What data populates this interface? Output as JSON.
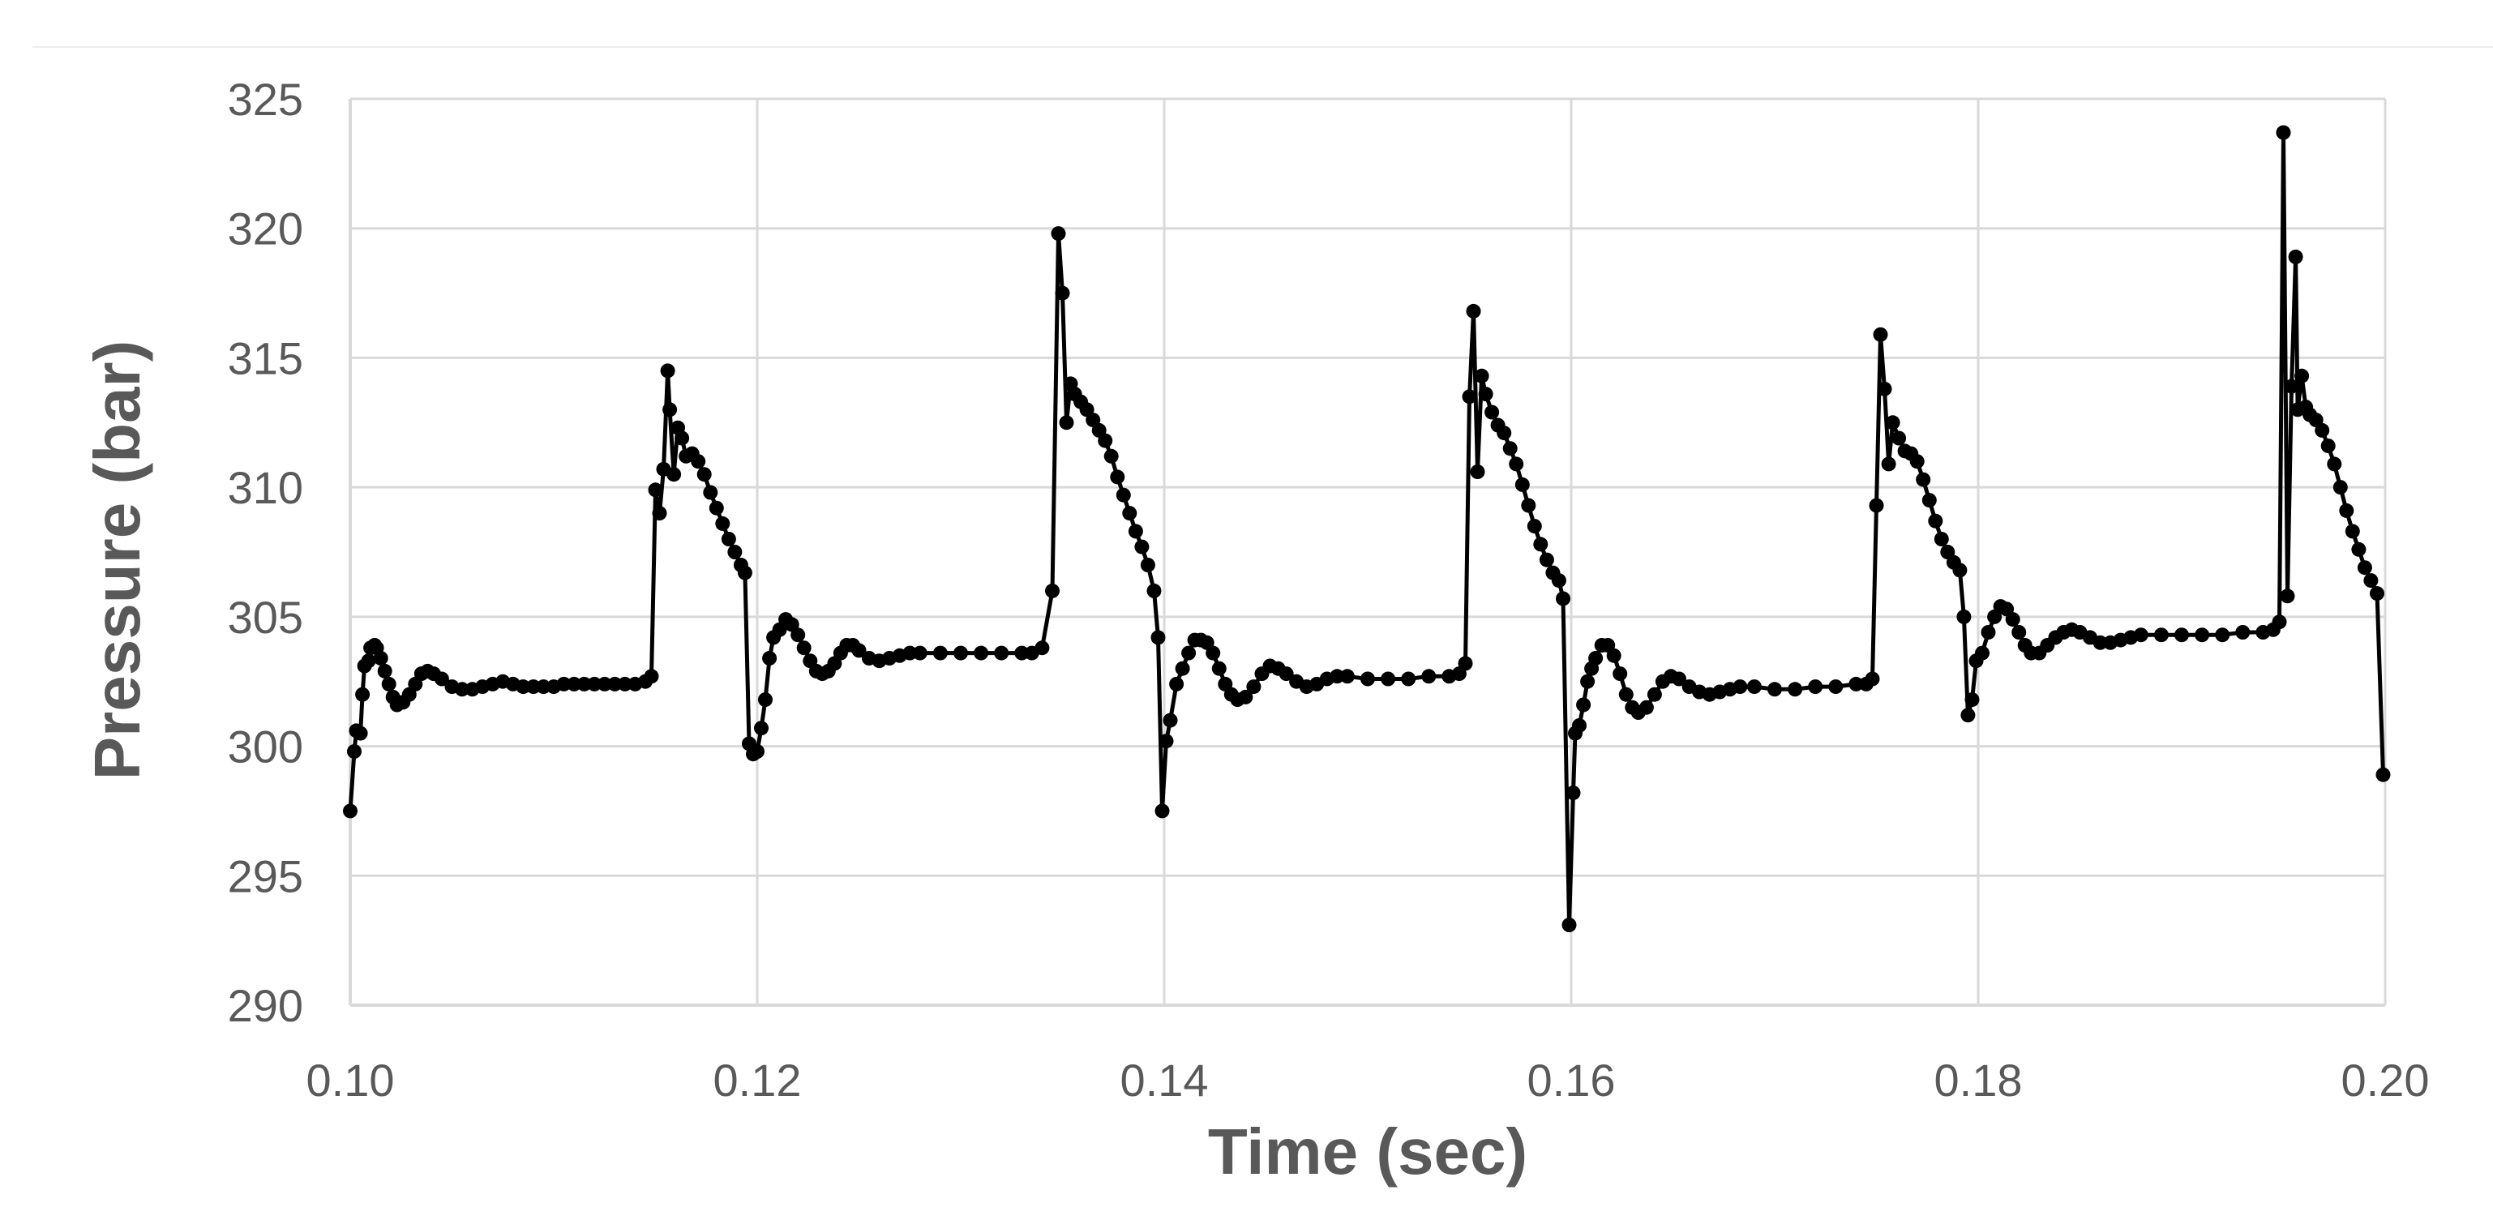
{
  "chart_data": {
    "type": "line",
    "title": "",
    "xlabel": "Time (sec)",
    "ylabel": "Pressure (bar)",
    "xlim": [
      0.1,
      0.2
    ],
    "ylim": [
      290,
      325
    ],
    "x_ticks": [
      "0.10",
      "0.12",
      "0.14",
      "0.16",
      "0.18",
      "0.20"
    ],
    "y_ticks": [
      "290",
      "295",
      "300",
      "305",
      "310",
      "315",
      "320",
      "325"
    ],
    "grid": true,
    "legend": "none",
    "colors": {
      "line": "#000000",
      "grid": "#d9d9d9",
      "text": "#595959"
    },
    "series": [
      {
        "marker": "circle",
        "points": [
          [
            0.1,
            297.5
          ],
          [
            0.1002,
            299.8
          ],
          [
            0.1003,
            300.6
          ],
          [
            0.1005,
            300.5
          ],
          [
            0.1006,
            302.0
          ],
          [
            0.1007,
            303.1
          ],
          [
            0.1009,
            303.3
          ],
          [
            0.101,
            303.8
          ],
          [
            0.1012,
            303.9
          ],
          [
            0.1013,
            303.8
          ],
          [
            0.1015,
            303.4
          ],
          [
            0.1017,
            302.9
          ],
          [
            0.1019,
            302.4
          ],
          [
            0.1021,
            301.9
          ],
          [
            0.1023,
            301.6
          ],
          [
            0.1026,
            301.7
          ],
          [
            0.1029,
            302.0
          ],
          [
            0.1032,
            302.4
          ],
          [
            0.1035,
            302.8
          ],
          [
            0.1038,
            302.9
          ],
          [
            0.1041,
            302.8
          ],
          [
            0.1045,
            302.6
          ],
          [
            0.105,
            302.3
          ],
          [
            0.1055,
            302.2
          ],
          [
            0.106,
            302.2
          ],
          [
            0.1065,
            302.3
          ],
          [
            0.107,
            302.4
          ],
          [
            0.1075,
            302.5
          ],
          [
            0.108,
            302.4
          ],
          [
            0.1085,
            302.3
          ],
          [
            0.109,
            302.3
          ],
          [
            0.1095,
            302.3
          ],
          [
            0.11,
            302.3
          ],
          [
            0.1105,
            302.4
          ],
          [
            0.111,
            302.4
          ],
          [
            0.1115,
            302.4
          ],
          [
            0.112,
            302.4
          ],
          [
            0.1125,
            302.4
          ],
          [
            0.113,
            302.4
          ],
          [
            0.1135,
            302.4
          ],
          [
            0.114,
            302.4
          ],
          [
            0.1145,
            302.5
          ],
          [
            0.1148,
            302.7
          ],
          [
            0.115,
            309.9
          ],
          [
            0.1152,
            309.0
          ],
          [
            0.1154,
            310.7
          ],
          [
            0.1156,
            314.5
          ],
          [
            0.1157,
            313.0
          ],
          [
            0.1159,
            310.5
          ],
          [
            0.1161,
            312.3
          ],
          [
            0.1163,
            311.9
          ],
          [
            0.1165,
            311.2
          ],
          [
            0.1168,
            311.3
          ],
          [
            0.1171,
            311.0
          ],
          [
            0.1174,
            310.5
          ],
          [
            0.1177,
            309.8
          ],
          [
            0.118,
            309.2
          ],
          [
            0.1183,
            308.6
          ],
          [
            0.1186,
            308.0
          ],
          [
            0.1189,
            307.5
          ],
          [
            0.1192,
            307.0
          ],
          [
            0.1194,
            306.7
          ],
          [
            0.1196,
            300.1
          ],
          [
            0.1198,
            299.7
          ],
          [
            0.12,
            299.8
          ],
          [
            0.1202,
            300.7
          ],
          [
            0.1204,
            301.8
          ],
          [
            0.1206,
            303.4
          ],
          [
            0.1208,
            304.2
          ],
          [
            0.1211,
            304.5
          ],
          [
            0.1214,
            304.9
          ],
          [
            0.1217,
            304.7
          ],
          [
            0.122,
            304.3
          ],
          [
            0.1223,
            303.8
          ],
          [
            0.1226,
            303.3
          ],
          [
            0.1229,
            302.9
          ],
          [
            0.1232,
            302.8
          ],
          [
            0.1235,
            302.9
          ],
          [
            0.1238,
            303.2
          ],
          [
            0.1241,
            303.6
          ],
          [
            0.1244,
            303.9
          ],
          [
            0.1247,
            303.9
          ],
          [
            0.125,
            303.7
          ],
          [
            0.1255,
            303.4
          ],
          [
            0.126,
            303.3
          ],
          [
            0.1265,
            303.4
          ],
          [
            0.127,
            303.5
          ],
          [
            0.1275,
            303.6
          ],
          [
            0.128,
            303.6
          ],
          [
            0.129,
            303.6
          ],
          [
            0.13,
            303.6
          ],
          [
            0.131,
            303.6
          ],
          [
            0.132,
            303.6
          ],
          [
            0.133,
            303.6
          ],
          [
            0.1335,
            303.6
          ],
          [
            0.134,
            303.8
          ],
          [
            0.1345,
            306.0
          ],
          [
            0.1348,
            319.8
          ],
          [
            0.135,
            317.5
          ],
          [
            0.1352,
            312.5
          ],
          [
            0.1354,
            314.0
          ],
          [
            0.1356,
            313.6
          ],
          [
            0.1359,
            313.3
          ],
          [
            0.1362,
            313.0
          ],
          [
            0.1365,
            312.6
          ],
          [
            0.1368,
            312.2
          ],
          [
            0.1371,
            311.8
          ],
          [
            0.1374,
            311.2
          ],
          [
            0.1377,
            310.4
          ],
          [
            0.138,
            309.7
          ],
          [
            0.1383,
            309.0
          ],
          [
            0.1386,
            308.3
          ],
          [
            0.1389,
            307.7
          ],
          [
            0.1392,
            307.0
          ],
          [
            0.1395,
            306.0
          ],
          [
            0.1397,
            304.2
          ],
          [
            0.1399,
            297.5
          ],
          [
            0.1401,
            300.2
          ],
          [
            0.1403,
            301.0
          ],
          [
            0.1406,
            302.4
          ],
          [
            0.1409,
            303.0
          ],
          [
            0.1412,
            303.6
          ],
          [
            0.1415,
            304.1
          ],
          [
            0.1418,
            304.1
          ],
          [
            0.1421,
            304.0
          ],
          [
            0.1424,
            303.6
          ],
          [
            0.1427,
            303.0
          ],
          [
            0.143,
            302.4
          ],
          [
            0.1433,
            302.0
          ],
          [
            0.1436,
            301.8
          ],
          [
            0.144,
            301.9
          ],
          [
            0.1444,
            302.3
          ],
          [
            0.1448,
            302.8
          ],
          [
            0.1452,
            303.1
          ],
          [
            0.1456,
            303.0
          ],
          [
            0.146,
            302.8
          ],
          [
            0.1465,
            302.5
          ],
          [
            0.147,
            302.3
          ],
          [
            0.1475,
            302.4
          ],
          [
            0.148,
            302.6
          ],
          [
            0.1485,
            302.7
          ],
          [
            0.149,
            302.7
          ],
          [
            0.15,
            302.6
          ],
          [
            0.151,
            302.6
          ],
          [
            0.152,
            302.6
          ],
          [
            0.153,
            302.7
          ],
          [
            0.154,
            302.7
          ],
          [
            0.1545,
            302.8
          ],
          [
            0.1548,
            303.2
          ],
          [
            0.155,
            313.5
          ],
          [
            0.1552,
            316.8
          ],
          [
            0.1554,
            310.6
          ],
          [
            0.1556,
            314.3
          ],
          [
            0.1558,
            313.6
          ],
          [
            0.1561,
            312.9
          ],
          [
            0.1564,
            312.4
          ],
          [
            0.1567,
            312.1
          ],
          [
            0.157,
            311.5
          ],
          [
            0.1573,
            310.9
          ],
          [
            0.1576,
            310.1
          ],
          [
            0.1579,
            309.3
          ],
          [
            0.1582,
            308.5
          ],
          [
            0.1585,
            307.8
          ],
          [
            0.1588,
            307.2
          ],
          [
            0.1591,
            306.7
          ],
          [
            0.1594,
            306.4
          ],
          [
            0.1596,
            305.7
          ],
          [
            0.1599,
            293.1
          ],
          [
            0.1601,
            298.2
          ],
          [
            0.1602,
            300.5
          ],
          [
            0.1604,
            300.8
          ],
          [
            0.1606,
            301.6
          ],
          [
            0.1608,
            302.5
          ],
          [
            0.161,
            303.0
          ],
          [
            0.1612,
            303.4
          ],
          [
            0.1615,
            303.9
          ],
          [
            0.1618,
            303.9
          ],
          [
            0.1621,
            303.5
          ],
          [
            0.1624,
            302.8
          ],
          [
            0.1627,
            302.0
          ],
          [
            0.163,
            301.5
          ],
          [
            0.1633,
            301.3
          ],
          [
            0.1637,
            301.5
          ],
          [
            0.1641,
            302.0
          ],
          [
            0.1645,
            302.5
          ],
          [
            0.1649,
            302.7
          ],
          [
            0.1653,
            302.6
          ],
          [
            0.1658,
            302.3
          ],
          [
            0.1663,
            302.1
          ],
          [
            0.1668,
            302.0
          ],
          [
            0.1673,
            302.1
          ],
          [
            0.1678,
            302.2
          ],
          [
            0.1683,
            302.3
          ],
          [
            0.169,
            302.3
          ],
          [
            0.17,
            302.2
          ],
          [
            0.171,
            302.2
          ],
          [
            0.172,
            302.3
          ],
          [
            0.173,
            302.3
          ],
          [
            0.174,
            302.4
          ],
          [
            0.1745,
            302.4
          ],
          [
            0.1748,
            302.6
          ],
          [
            0.175,
            309.3
          ],
          [
            0.1752,
            315.9
          ],
          [
            0.1754,
            313.8
          ],
          [
            0.1756,
            310.9
          ],
          [
            0.1758,
            312.5
          ],
          [
            0.1761,
            311.9
          ],
          [
            0.1764,
            311.4
          ],
          [
            0.1767,
            311.3
          ],
          [
            0.177,
            311.0
          ],
          [
            0.1773,
            310.3
          ],
          [
            0.1776,
            309.5
          ],
          [
            0.1779,
            308.7
          ],
          [
            0.1782,
            308.0
          ],
          [
            0.1785,
            307.5
          ],
          [
            0.1788,
            307.1
          ],
          [
            0.1791,
            306.8
          ],
          [
            0.1793,
            305.0
          ],
          [
            0.1795,
            301.2
          ],
          [
            0.1797,
            301.8
          ],
          [
            0.1799,
            303.3
          ],
          [
            0.1802,
            303.6
          ],
          [
            0.1805,
            304.4
          ],
          [
            0.1808,
            305.0
          ],
          [
            0.1811,
            305.4
          ],
          [
            0.1814,
            305.3
          ],
          [
            0.1817,
            304.9
          ],
          [
            0.182,
            304.4
          ],
          [
            0.1823,
            303.9
          ],
          [
            0.1826,
            303.6
          ],
          [
            0.183,
            303.6
          ],
          [
            0.1834,
            303.9
          ],
          [
            0.1838,
            304.2
          ],
          [
            0.1842,
            304.4
          ],
          [
            0.1846,
            304.5
          ],
          [
            0.185,
            304.4
          ],
          [
            0.1855,
            304.2
          ],
          [
            0.186,
            304.0
          ],
          [
            0.1865,
            304.0
          ],
          [
            0.187,
            304.1
          ],
          [
            0.1875,
            304.2
          ],
          [
            0.188,
            304.3
          ],
          [
            0.189,
            304.3
          ],
          [
            0.19,
            304.3
          ],
          [
            0.191,
            304.3
          ],
          [
            0.192,
            304.3
          ],
          [
            0.193,
            304.4
          ],
          [
            0.194,
            304.4
          ],
          [
            0.1945,
            304.5
          ],
          [
            0.1948,
            304.8
          ],
          [
            0.195,
            323.7
          ],
          [
            0.1952,
            305.8
          ],
          [
            0.1954,
            313.9
          ],
          [
            0.1956,
            318.9
          ],
          [
            0.1957,
            313.0
          ],
          [
            0.1959,
            314.3
          ],
          [
            0.1961,
            313.1
          ],
          [
            0.1963,
            312.8
          ],
          [
            0.1966,
            312.6
          ],
          [
            0.1969,
            312.2
          ],
          [
            0.1972,
            311.6
          ],
          [
            0.1975,
            310.9
          ],
          [
            0.1978,
            310.0
          ],
          [
            0.1981,
            309.1
          ],
          [
            0.1984,
            308.3
          ],
          [
            0.1987,
            307.6
          ],
          [
            0.199,
            306.9
          ],
          [
            0.1993,
            306.4
          ],
          [
            0.1996,
            305.9
          ],
          [
            0.1999,
            298.9
          ]
        ]
      }
    ]
  }
}
